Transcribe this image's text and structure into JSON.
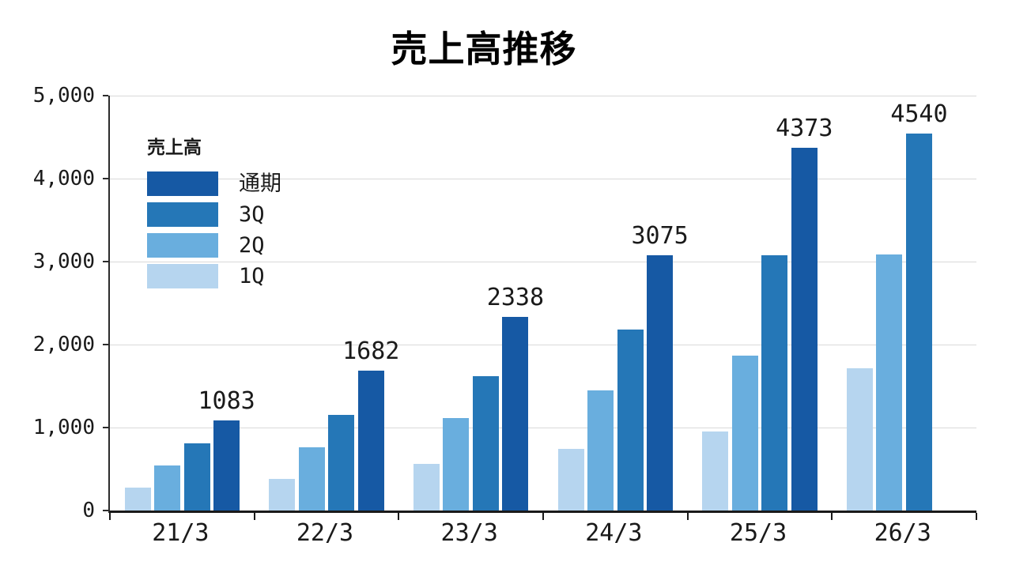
{
  "title": "売上高推移",
  "legend": {
    "title": "売上高",
    "items": [
      {
        "label": "通期",
        "color": "#1659a4"
      },
      {
        "label": "3Q",
        "color": "#2577b7"
      },
      {
        "label": "2Q",
        "color": "#69aede"
      },
      {
        "label": "1Q",
        "color": "#b6d5ef"
      }
    ]
  },
  "chart_data": {
    "type": "bar",
    "title": "売上高推移",
    "categories": [
      "21/3",
      "22/3",
      "23/3",
      "24/3",
      "25/3",
      "26/3"
    ],
    "series": [
      {
        "name": "1Q",
        "color": "#b6d5ef",
        "values": [
          275,
          380,
          560,
          740,
          950,
          1715
        ]
      },
      {
        "name": "2Q",
        "color": "#69aede",
        "values": [
          545,
          760,
          1110,
          1450,
          1870,
          3090
        ]
      },
      {
        "name": "3Q",
        "color": "#2577b7",
        "values": [
          805,
          1150,
          1620,
          2180,
          3080,
          4540
        ]
      },
      {
        "name": "通期",
        "color": "#1659a4",
        "values": [
          1083,
          1682,
          2338,
          3075,
          4373,
          null
        ]
      }
    ],
    "bar_labels": [
      "1083",
      "1682",
      "2338",
      "3075",
      "4373",
      "4540"
    ],
    "ylim": [
      0,
      5000
    ],
    "yticks": [
      {
        "value": 0,
        "label": "0"
      },
      {
        "value": 1000,
        "label": "1,000"
      },
      {
        "value": 2000,
        "label": "2,000"
      },
      {
        "value": 3000,
        "label": "3,000"
      },
      {
        "value": 4000,
        "label": "4,000"
      },
      {
        "value": 5000,
        "label": "5,000"
      }
    ],
    "grid": true,
    "legend_position": "upper-left",
    "note": "26/3 has no 通期 bar; its labeled top bar (4540) is the 3Q series"
  }
}
